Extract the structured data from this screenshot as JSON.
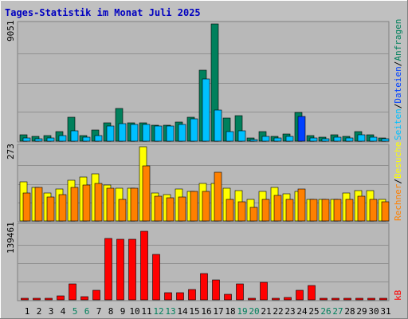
{
  "chart_data": [
    {
      "type": "bar",
      "title": "Tages-Statistik im Monat Juli 2025",
      "ymax_label": "9051",
      "ylim": [
        0,
        9051
      ],
      "categories": [
        "1",
        "2",
        "3",
        "4",
        "5",
        "6",
        "7",
        "8",
        "9",
        "10",
        "11",
        "12",
        "13",
        "14",
        "15",
        "16",
        "17",
        "18",
        "19",
        "20",
        "21",
        "22",
        "23",
        "24",
        "25",
        "26",
        "27",
        "28",
        "29",
        "30",
        "31"
      ],
      "weekend_days": [
        "5",
        "6",
        "12",
        "13",
        "19",
        "20",
        "26",
        "27"
      ],
      "right_label": {
        "anfragen": "Anfragen",
        "dateien": "Dateien",
        "seiten": "Seiten",
        "sep": "/"
      },
      "series": [
        {
          "name": "Anfragen",
          "color": "#00805c",
          "values": [
            480,
            360,
            420,
            760,
            1820,
            450,
            860,
            1430,
            2500,
            1430,
            1430,
            1220,
            1220,
            1450,
            1820,
            5450,
            9051,
            1800,
            2000,
            260,
            720,
            380,
            540,
            2200,
            420,
            320,
            500,
            340,
            750,
            520,
            250
          ]
        },
        {
          "name": "Dateien",
          "color": "#00c0ff",
          "values": [
            230,
            210,
            230,
            420,
            820,
            330,
            420,
            1150,
            1350,
            1300,
            1280,
            1150,
            1150,
            1300,
            1750,
            4800,
            2400,
            730,
            800,
            150,
            370,
            220,
            350,
            1900,
            250,
            210,
            280,
            220,
            480,
            320,
            160
          ],
          "highlight": {
            "index": 23,
            "color": "#0040ff"
          }
        }
      ]
    },
    {
      "type": "bar",
      "ymax_label": "273",
      "ylim": [
        0,
        273
      ],
      "categories": [
        "1",
        "2",
        "3",
        "4",
        "5",
        "6",
        "7",
        "8",
        "9",
        "10",
        "11",
        "12",
        "13",
        "14",
        "15",
        "16",
        "17",
        "18",
        "19",
        "20",
        "21",
        "22",
        "23",
        "24",
        "25",
        "26",
        "27",
        "28",
        "29",
        "30",
        "31"
      ],
      "right_label": {
        "besuche": "Besuche",
        "rechner": "Rechner",
        "sep": "/"
      },
      "series": [
        {
          "name": "Besuche",
          "color": "#ffff00",
          "values": [
            143,
            123,
            102,
            118,
            149,
            161,
            172,
            132,
            120,
            121,
            273,
            103,
            98,
            118,
            110,
            137,
            137,
            120,
            112,
            80,
            110,
            122,
            100,
            110,
            80,
            80,
            80,
            102,
            113,
            113,
            80
          ]
        },
        {
          "name": "Rechner",
          "color": "#ff8000",
          "values": [
            102,
            123,
            88,
            97,
            123,
            132,
            137,
            120,
            80,
            120,
            203,
            91,
            85,
            88,
            108,
            108,
            178,
            80,
            70,
            50,
            80,
            95,
            80,
            118,
            80,
            80,
            80,
            80,
            90,
            80,
            70
          ]
        }
      ]
    },
    {
      "type": "bar",
      "ymax_label": "139461",
      "ylim": [
        0,
        139461
      ],
      "categories": [
        "1",
        "2",
        "3",
        "4",
        "5",
        "6",
        "7",
        "8",
        "9",
        "10",
        "11",
        "12",
        "13",
        "14",
        "15",
        "16",
        "17",
        "18",
        "19",
        "20",
        "21",
        "22",
        "23",
        "24",
        "25",
        "26",
        "27",
        "28",
        "29",
        "30",
        "31"
      ],
      "right_label": {
        "kb": "kB"
      },
      "series": [
        {
          "name": "kB",
          "color": "#ff0000",
          "values": [
            3500,
            3500,
            3500,
            7900,
            30000,
            5700,
            18000,
            117000,
            115000,
            115000,
            130000,
            86000,
            13000,
            13000,
            20000,
            50000,
            38000,
            10000,
            31000,
            3000,
            33000,
            3500,
            4000,
            18000,
            27000,
            3000,
            3000,
            3000,
            3500,
            3000,
            3000
          ]
        }
      ]
    }
  ]
}
